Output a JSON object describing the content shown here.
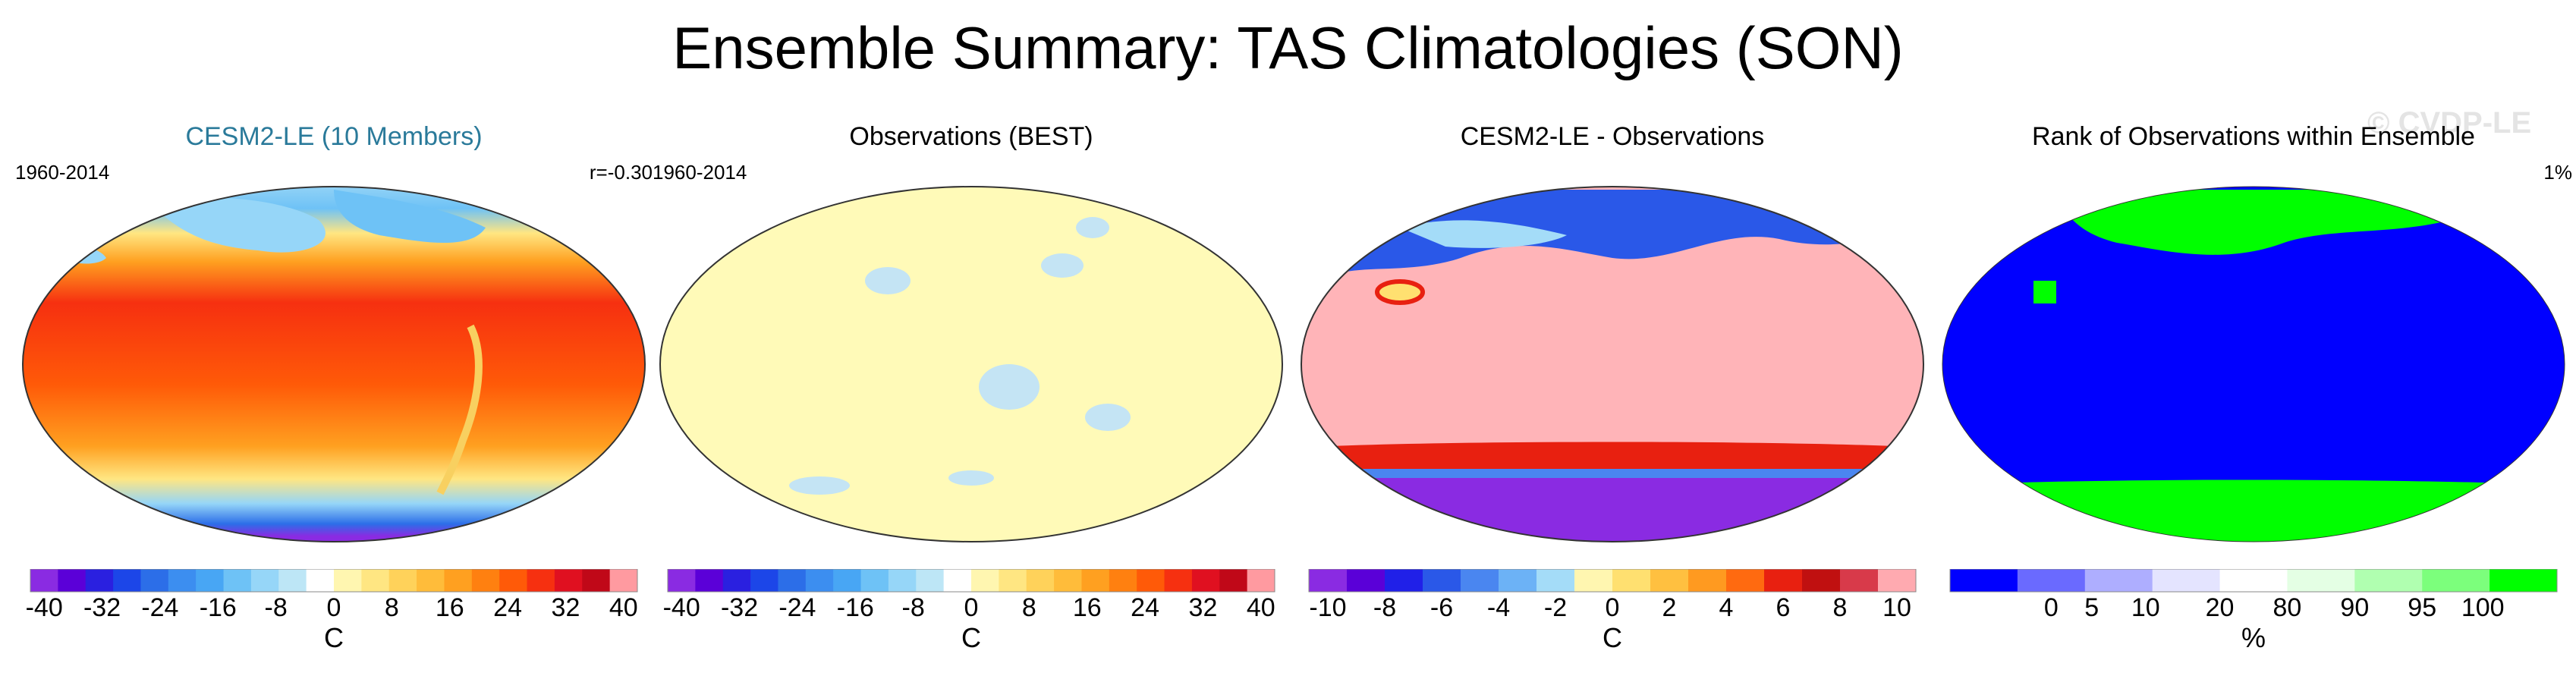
{
  "title": "Ensemble Summary: TAS Climatologies (SON)",
  "watermark": "© CVDP-LE",
  "chart_data": [
    {
      "type": "heatmap",
      "title": "CESM2-LE (10 Members)",
      "period": "1960-2014",
      "stat": "r=-0.30",
      "units": "C",
      "tick_labels": [
        "-40",
        "-32",
        "-24",
        "-16",
        "-8",
        "0",
        "8",
        "16",
        "24",
        "32",
        "40"
      ],
      "colors": [
        "#8a2be2",
        "#5b00d8",
        "#2a20e0",
        "#1c46e8",
        "#2c6ee8",
        "#3c8ef0",
        "#48a6f4",
        "#6ec2f6",
        "#96d6f8",
        "#bde6f6",
        "#ffffff",
        "#fff6b0",
        "#ffe682",
        "#ffd25a",
        "#ffbc3a",
        "#ffa020",
        "#ff8010",
        "#ff5a08",
        "#f63010",
        "#e01020",
        "#c00818",
        "#ff9aa0"
      ]
    },
    {
      "type": "heatmap",
      "title": "Observations (BEST)",
      "period": "1960-2014",
      "stat": "",
      "units": "C",
      "tick_labels": [
        "-40",
        "-32",
        "-24",
        "-16",
        "-8",
        "0",
        "8",
        "16",
        "24",
        "32",
        "40"
      ],
      "colors": [
        "#8a2be2",
        "#5b00d8",
        "#2a20e0",
        "#1c46e8",
        "#2c6ee8",
        "#3c8ef0",
        "#48a6f4",
        "#6ec2f6",
        "#96d6f8",
        "#bde6f6",
        "#ffffff",
        "#fff6b0",
        "#ffe682",
        "#ffd25a",
        "#ffbc3a",
        "#ffa020",
        "#ff8010",
        "#ff5a08",
        "#f63010",
        "#e01020",
        "#c00818",
        "#ff9aa0"
      ]
    },
    {
      "type": "heatmap",
      "title": "CESM2-LE - Observations",
      "period": "",
      "stat": "",
      "units": "C",
      "tick_labels": [
        "-10",
        "-8",
        "-6",
        "-4",
        "-2",
        "0",
        "2",
        "4",
        "6",
        "8",
        "10"
      ],
      "colors": [
        "#8a2be2",
        "#5a00d8",
        "#2020e8",
        "#2a58e8",
        "#4a86f0",
        "#6cb2f6",
        "#a4dcf8",
        "#fff6b0",
        "#ffe070",
        "#ffc040",
        "#ff9a20",
        "#ff6a10",
        "#e82010",
        "#c01010",
        "#d83a4a",
        "#ffaab0"
      ]
    },
    {
      "type": "heatmap",
      "title": "Rank of Observations within Ensemble",
      "period": "",
      "stat": "1%",
      "units": "%",
      "tick_labels": [
        "0",
        "5",
        "10",
        "20",
        "80",
        "90",
        "95",
        "100"
      ],
      "colors": [
        "#0000ff",
        "#6a6aff",
        "#aeaeff",
        "#e4e4ff",
        "#ffffff",
        "#e4ffe4",
        "#b0ffb0",
        "#7cff7c",
        "#00ff00"
      ]
    }
  ]
}
